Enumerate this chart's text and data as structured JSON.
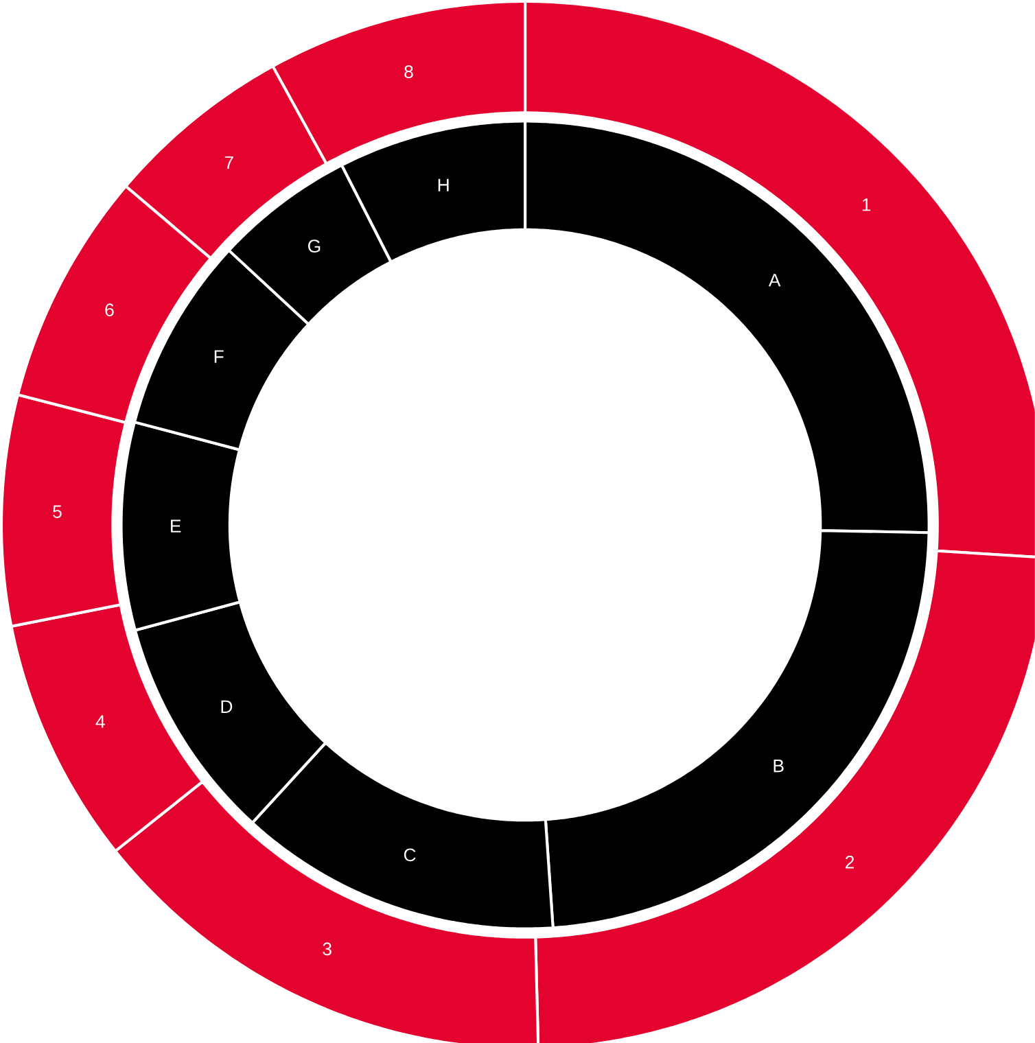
{
  "chart_data": [
    {
      "type": "donut",
      "categories": [
        "1",
        "2",
        "3",
        "4",
        "5",
        "6",
        "7",
        "8"
      ],
      "values": [
        26.0,
        23.6,
        14.7,
        7.6,
        7.1,
        7.2,
        5.8,
        8.0
      ],
      "colors": [
        "#e4032e",
        "#e4032e",
        "#e4032e",
        "#e4032e",
        "#e4032e",
        "#e4032e",
        "#e4032e",
        "#e4032e"
      ]
    },
    {
      "type": "donut",
      "categories": [
        "A",
        "B",
        "C",
        "D",
        "E",
        "F",
        "G",
        "H"
      ],
      "values": [
        25.3,
        23.6,
        12.9,
        9.0,
        8.3,
        7.8,
        5.6,
        7.5
      ],
      "colors": [
        "#000000",
        "#000000",
        "#000000",
        "#000000",
        "#000000",
        "#000000",
        "#000000",
        "#000000"
      ]
    }
  ]
}
